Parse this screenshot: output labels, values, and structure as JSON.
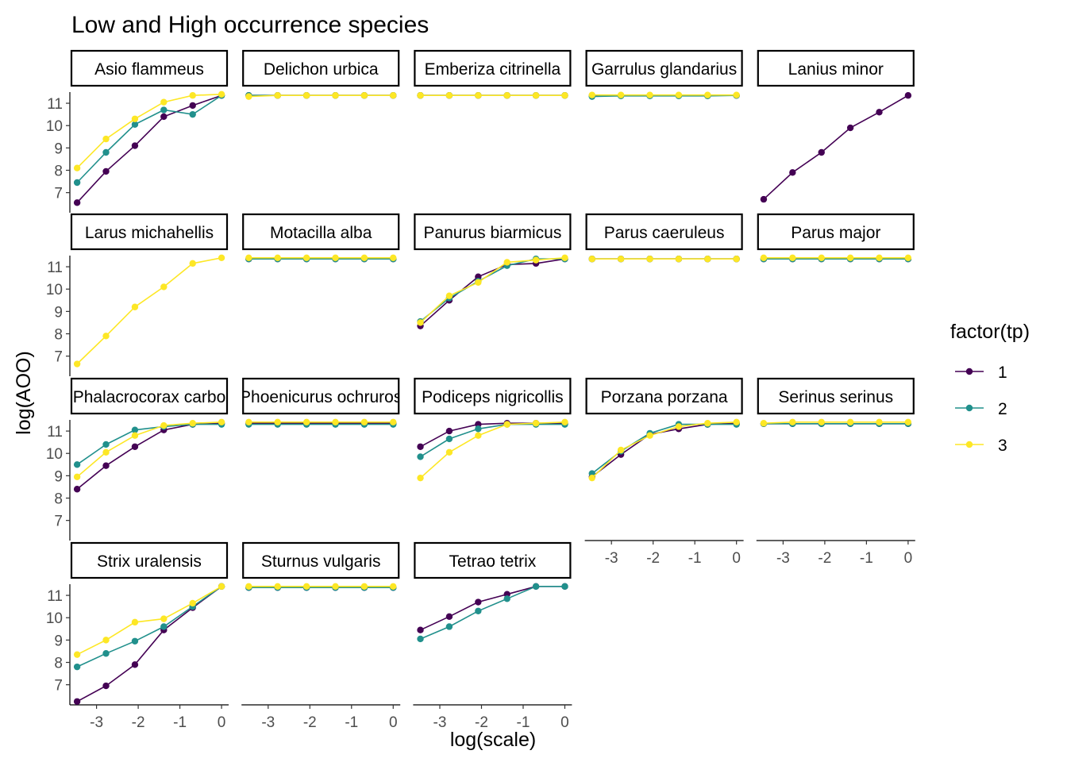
{
  "chart_data": {
    "type": "line",
    "title": "Low and High occurrence species",
    "xlabel": "log(scale)",
    "ylabel": "log(AOO)",
    "x": [
      -3.466,
      -2.773,
      -2.079,
      -1.386,
      -0.693,
      0
    ],
    "x_ticks": [
      -3,
      -2,
      -1,
      0
    ],
    "x_tick_labels": [
      "-3",
      "-2",
      "-1",
      "0"
    ],
    "y_ticks": [
      7,
      8,
      9,
      10,
      11
    ],
    "y_tick_labels": [
      "7",
      "8",
      "9",
      "10",
      "11"
    ],
    "xlim": [
      -3.64,
      0.17
    ],
    "ylim": [
      6.1,
      11.5
    ],
    "grid": false,
    "legend": {
      "title": "factor(tp)",
      "position": "right",
      "entries": [
        {
          "label": "1",
          "color": "#440154"
        },
        {
          "label": "2",
          "color": "#21908C"
        },
        {
          "label": "3",
          "color": "#FDE725"
        }
      ]
    },
    "panels": [
      {
        "species": "Asio flammeus",
        "series": [
          {
            "tp": "1",
            "values": [
              6.55,
              7.95,
              9.1,
              10.4,
              10.9,
              11.35
            ]
          },
          {
            "tp": "2",
            "values": [
              7.45,
              8.8,
              10.05,
              10.7,
              10.5,
              11.35
            ]
          },
          {
            "tp": "3",
            "values": [
              8.1,
              9.4,
              10.3,
              11.05,
              11.35,
              11.4
            ]
          }
        ]
      },
      {
        "species": "Delichon urbica",
        "series": [
          {
            "tp": "1",
            "values": [
              11.35,
              11.35,
              11.35,
              11.35,
              11.35,
              11.35
            ]
          },
          {
            "tp": "2",
            "values": [
              11.35,
              11.35,
              11.35,
              11.35,
              11.35,
              11.35
            ]
          },
          {
            "tp": "3",
            "values": [
              11.3,
              11.35,
              11.35,
              11.35,
              11.35,
              11.35
            ]
          }
        ]
      },
      {
        "species": "Emberiza citrinella",
        "series": [
          {
            "tp": "1",
            "values": [
              11.35,
              11.35,
              11.35,
              11.35,
              11.35,
              11.35
            ]
          },
          {
            "tp": "2",
            "values": [
              11.35,
              11.35,
              11.35,
              11.35,
              11.35,
              11.35
            ]
          },
          {
            "tp": "3",
            "values": [
              11.35,
              11.35,
              11.35,
              11.35,
              11.35,
              11.35
            ]
          }
        ]
      },
      {
        "species": "Garrulus glandarius",
        "series": [
          {
            "tp": "1",
            "values": [
              11.35,
              11.35,
              11.35,
              11.35,
              11.35,
              11.35
            ]
          },
          {
            "tp": "2",
            "values": [
              11.3,
              11.33,
              11.33,
              11.33,
              11.33,
              11.35
            ]
          },
          {
            "tp": "3",
            "values": [
              11.37,
              11.37,
              11.37,
              11.37,
              11.37,
              11.37
            ]
          }
        ]
      },
      {
        "species": "Lanius minor",
        "series": [
          {
            "tp": "1",
            "values": [
              6.7,
              7.9,
              8.8,
              9.9,
              10.6,
              11.35
            ]
          }
        ]
      },
      {
        "species": "Larus michahellis",
        "series": [
          {
            "tp": "3",
            "values": [
              6.65,
              7.9,
              9.2,
              10.1,
              11.15,
              11.4
            ]
          }
        ]
      },
      {
        "species": "Motacilla alba",
        "series": [
          {
            "tp": "1",
            "values": [
              11.35,
              11.35,
              11.35,
              11.35,
              11.35,
              11.35
            ]
          },
          {
            "tp": "2",
            "values": [
              11.35,
              11.35,
              11.35,
              11.35,
              11.35,
              11.35
            ]
          },
          {
            "tp": "3",
            "values": [
              11.4,
              11.4,
              11.4,
              11.4,
              11.4,
              11.4
            ]
          }
        ]
      },
      {
        "species": "Panurus biarmicus",
        "series": [
          {
            "tp": "1",
            "values": [
              8.35,
              9.5,
              10.55,
              11.1,
              11.15,
              11.35
            ]
          },
          {
            "tp": "2",
            "values": [
              8.55,
              9.6,
              10.35,
              11.05,
              11.35,
              11.35
            ]
          },
          {
            "tp": "3",
            "values": [
              8.5,
              9.7,
              10.3,
              11.2,
              11.3,
              11.4
            ]
          }
        ]
      },
      {
        "species": "Parus caeruleus",
        "series": [
          {
            "tp": "1",
            "values": [
              11.35,
              11.35,
              11.35,
              11.35,
              11.35,
              11.35
            ]
          },
          {
            "tp": "2",
            "values": [
              11.35,
              11.35,
              11.35,
              11.35,
              11.35,
              11.35
            ]
          },
          {
            "tp": "3",
            "values": [
              11.35,
              11.35,
              11.35,
              11.35,
              11.35,
              11.35
            ]
          }
        ]
      },
      {
        "species": "Parus major",
        "series": [
          {
            "tp": "1",
            "values": [
              11.35,
              11.35,
              11.35,
              11.35,
              11.35,
              11.35
            ]
          },
          {
            "tp": "2",
            "values": [
              11.35,
              11.35,
              11.35,
              11.35,
              11.35,
              11.35
            ]
          },
          {
            "tp": "3",
            "values": [
              11.4,
              11.4,
              11.4,
              11.4,
              11.4,
              11.4
            ]
          }
        ]
      },
      {
        "species": "Phalacrocorax carbo",
        "series": [
          {
            "tp": "1",
            "values": [
              8.4,
              9.45,
              10.3,
              11.05,
              11.3,
              11.35
            ]
          },
          {
            "tp": "2",
            "values": [
              9.5,
              10.4,
              11.05,
              11.2,
              11.3,
              11.3
            ]
          },
          {
            "tp": "3",
            "values": [
              8.95,
              10.05,
              10.8,
              11.25,
              11.35,
              11.4
            ]
          }
        ]
      },
      {
        "species": "Phoenicurus ochruros",
        "series": [
          {
            "tp": "1",
            "values": [
              11.35,
              11.35,
              11.35,
              11.35,
              11.35,
              11.35
            ]
          },
          {
            "tp": "2",
            "values": [
              11.3,
              11.3,
              11.3,
              11.3,
              11.3,
              11.3
            ]
          },
          {
            "tp": "3",
            "values": [
              11.4,
              11.4,
              11.4,
              11.4,
              11.4,
              11.4
            ]
          }
        ]
      },
      {
        "species": "Podiceps nigricollis",
        "series": [
          {
            "tp": "1",
            "values": [
              10.3,
              11.0,
              11.3,
              11.35,
              11.35,
              11.35
            ]
          },
          {
            "tp": "2",
            "values": [
              9.85,
              10.65,
              11.1,
              11.3,
              11.3,
              11.3
            ]
          },
          {
            "tp": "3",
            "values": [
              8.9,
              10.05,
              10.8,
              11.3,
              11.35,
              11.4
            ]
          }
        ]
      },
      {
        "species": "Porzana porzana",
        "series": [
          {
            "tp": "1",
            "values": [
              8.95,
              9.95,
              10.85,
              11.1,
              11.3,
              11.35
            ]
          },
          {
            "tp": "2",
            "values": [
              9.1,
              10.1,
              10.9,
              11.3,
              11.3,
              11.3
            ]
          },
          {
            "tp": "3",
            "values": [
              8.9,
              10.15,
              10.8,
              11.2,
              11.35,
              11.4
            ]
          }
        ]
      },
      {
        "species": "Serinus serinus",
        "series": [
          {
            "tp": "1",
            "values": [
              11.33,
              11.33,
              11.33,
              11.33,
              11.33,
              11.33
            ]
          },
          {
            "tp": "2",
            "values": [
              11.33,
              11.33,
              11.33,
              11.33,
              11.33,
              11.33
            ]
          },
          {
            "tp": "3",
            "values": [
              11.35,
              11.4,
              11.4,
              11.4,
              11.4,
              11.4
            ]
          }
        ]
      },
      {
        "species": "Strix uralensis",
        "series": [
          {
            "tp": "1",
            "values": [
              6.25,
              6.95,
              7.9,
              9.45,
              10.45,
              11.4
            ]
          },
          {
            "tp": "2",
            "values": [
              7.8,
              8.4,
              8.95,
              9.6,
              10.5,
              11.4
            ]
          },
          {
            "tp": "3",
            "values": [
              8.35,
              9.0,
              9.8,
              9.95,
              10.65,
              11.4
            ]
          }
        ]
      },
      {
        "species": "Sturnus vulgaris",
        "series": [
          {
            "tp": "1",
            "values": [
              11.35,
              11.35,
              11.35,
              11.35,
              11.35,
              11.35
            ]
          },
          {
            "tp": "2",
            "values": [
              11.35,
              11.35,
              11.35,
              11.35,
              11.35,
              11.35
            ]
          },
          {
            "tp": "3",
            "values": [
              11.4,
              11.4,
              11.4,
              11.4,
              11.4,
              11.4
            ]
          }
        ]
      },
      {
        "species": "Tetrao tetrix",
        "series": [
          {
            "tp": "1",
            "values": [
              9.45,
              10.05,
              10.7,
              11.05,
              11.4,
              11.4
            ]
          },
          {
            "tp": "2",
            "values": [
              9.05,
              9.6,
              10.3,
              10.85,
              11.4,
              11.4
            ]
          }
        ]
      }
    ]
  }
}
